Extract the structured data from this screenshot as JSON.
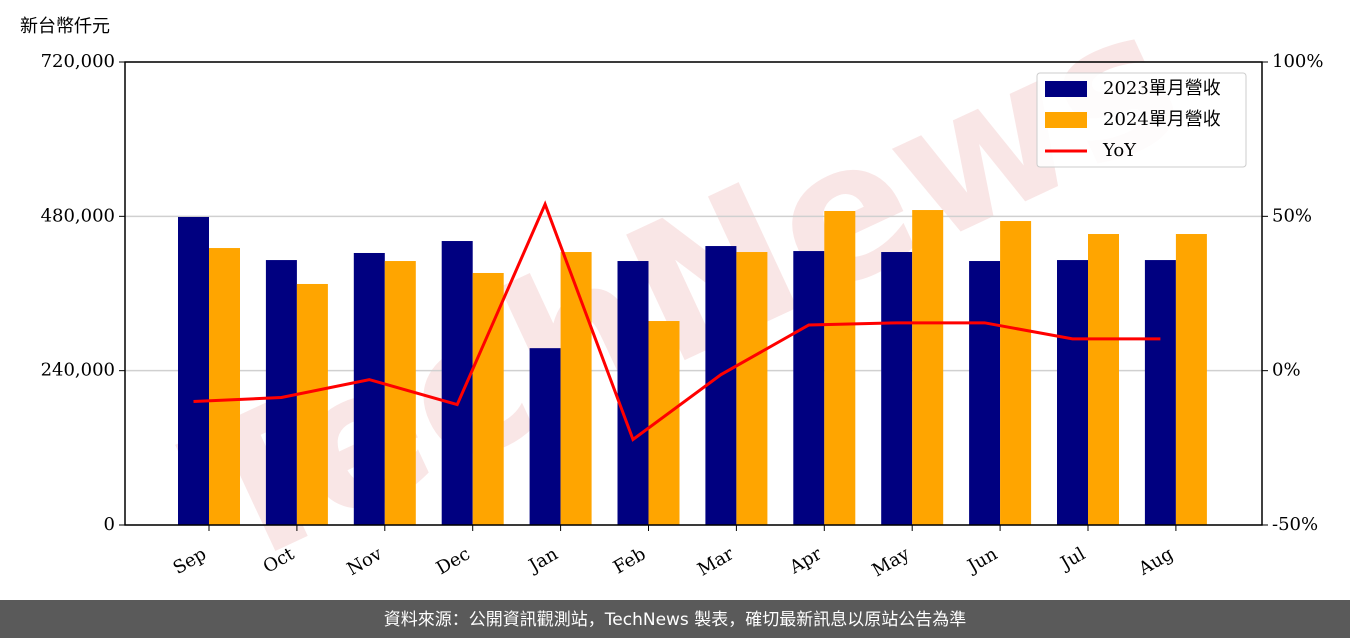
{
  "chart_data": {
    "type": "bar",
    "unit_label": "新台幣仟元",
    "watermark": "TechNews",
    "footer": "資料來源：公開資訊觀測站，TechNews 製表，確切最新訊息以原站公告為準",
    "categories": [
      "Sep",
      "Oct",
      "Nov",
      "Dec",
      "Jan",
      "Feb",
      "Mar",
      "Apr",
      "May",
      "Jun",
      "Jul",
      "Aug"
    ],
    "series": [
      {
        "name": "2023單月營收",
        "color": "#000080",
        "values": [
          479000,
          412000,
          423000,
          441600,
          275000,
          410500,
          433800,
          426000,
          424500,
          410500,
          412000,
          412000
        ]
      },
      {
        "name": "2024單月營收",
        "color": "#ffa500",
        "values": [
          430700,
          374800,
          410500,
          391900,
          424500,
          317200,
          424500,
          488300,
          489800,
          472700,
          452500,
          452500
        ]
      },
      {
        "name": "YoY",
        "color": "#ff0000",
        "type": "line",
        "axis": "y2",
        "values": [
          -10,
          -8.7,
          -2.9,
          -11,
          53.9,
          -22.3,
          -1.3,
          14.8,
          15.5,
          15.5,
          10.3,
          10.3
        ]
      }
    ],
    "ylim": [
      0,
      720000
    ],
    "yticks": [
      0,
      {
        "value": 240000,
        "label": "240,000"
      },
      {
        "value": 480000,
        "label": "480,000"
      },
      {
        "value": 720000,
        "label": "720,000"
      }
    ],
    "y2lim": [
      -50,
      100
    ],
    "y2ticks": [
      {
        "value": -50,
        "label": "-50%"
      },
      {
        "value": 0,
        "label": "0%"
      },
      {
        "value": 50,
        "label": "50%"
      },
      {
        "value": 100,
        "label": "100%"
      }
    ],
    "grid": true,
    "legend": "upper right"
  }
}
